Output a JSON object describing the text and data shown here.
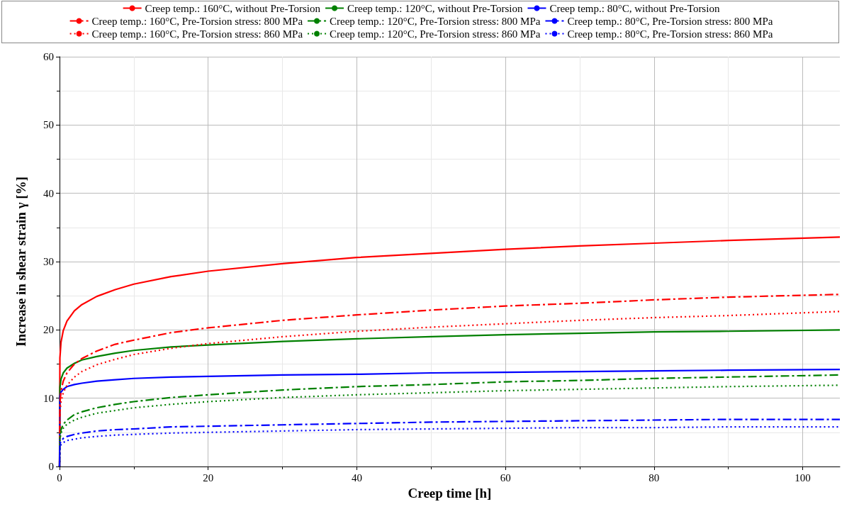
{
  "chart_data": {
    "type": "line",
    "xlabel": "Creep time [h]",
    "ylabel": "Increase in shear strain γ [%]",
    "x": [
      0,
      0.05,
      0.2,
      0.5,
      1,
      2,
      3,
      5,
      7.5,
      10,
      15,
      20,
      30,
      40,
      50,
      60,
      70,
      80,
      90,
      105
    ],
    "xlim": [
      0,
      105
    ],
    "xticks": [
      0,
      20,
      40,
      60,
      80,
      100
    ],
    "ylim": [
      0,
      60
    ],
    "yticks": [
      0,
      10,
      20,
      30,
      40,
      50,
      60
    ],
    "grid": true,
    "legend": "top",
    "marker": "none",
    "series": [
      {
        "name": "Creep temp.: 160°C, without Pre-Torsion",
        "color": "#ff0000",
        "line_style": "solid",
        "values": [
          0,
          15.9,
          18.2,
          19.9,
          21.3,
          22.8,
          23.7,
          24.9,
          25.9,
          26.7,
          27.8,
          28.6,
          29.7,
          30.6,
          31.2,
          31.8,
          32.3,
          32.7,
          33.1,
          33.6
        ]
      },
      {
        "name": "Creep temp.: 120°C, without Pre-Torsion",
        "color": "#008000",
        "line_style": "solid",
        "values": [
          0,
          11.6,
          12.8,
          13.7,
          14.4,
          15.1,
          15.6,
          16.1,
          16.6,
          17.0,
          17.5,
          17.8,
          18.3,
          18.7,
          19.0,
          19.3,
          19.5,
          19.7,
          19.8,
          20.0
        ]
      },
      {
        "name": "Creep temp.: 80°C, without Pre-Torsion",
        "color": "#0000ff",
        "line_style": "solid",
        "values": [
          0,
          10.3,
          10.9,
          11.3,
          11.7,
          12.0,
          12.2,
          12.5,
          12.7,
          12.9,
          13.1,
          13.2,
          13.4,
          13.5,
          13.7,
          13.8,
          13.9,
          14.0,
          14.1,
          14.2
        ]
      },
      {
        "name": "Creep temp.: 160°C, Pre-Torsion stress: 800 MPa",
        "color": "#ff0000",
        "line_style": "dashdot",
        "values": [
          0,
          9.2,
          11.1,
          12.5,
          13.7,
          15.0,
          15.8,
          16.9,
          17.9,
          18.5,
          19.6,
          20.3,
          21.4,
          22.2,
          22.9,
          23.5,
          23.9,
          24.4,
          24.8,
          25.2
        ]
      },
      {
        "name": "Creep temp.: 120°C, Pre-Torsion stress: 800 MPa",
        "color": "#008000",
        "line_style": "dashdot",
        "values": [
          0,
          4.4,
          5.4,
          6.2,
          6.8,
          7.6,
          8.0,
          8.6,
          9.1,
          9.5,
          10.1,
          10.5,
          11.2,
          11.7,
          12.0,
          12.4,
          12.6,
          12.9,
          13.1,
          13.4
        ]
      },
      {
        "name": "Creep temp.: 80°C, Pre-Torsion stress: 800 MPa",
        "color": "#0000ff",
        "line_style": "dashdot",
        "values": [
          0,
          3.3,
          3.7,
          4.1,
          4.4,
          4.7,
          4.9,
          5.2,
          5.4,
          5.5,
          5.8,
          5.9,
          6.1,
          6.3,
          6.5,
          6.6,
          6.7,
          6.8,
          6.9,
          6.9
        ]
      },
      {
        "name": "Creep temp.: 160°C, Pre-Torsion stress: 860 MPa",
        "color": "#ff0000",
        "line_style": "dotted",
        "values": [
          0,
          7.9,
          9.5,
          10.8,
          11.9,
          13.1,
          13.9,
          14.9,
          15.7,
          16.4,
          17.3,
          18.0,
          19.0,
          19.8,
          20.4,
          20.9,
          21.4,
          21.8,
          22.1,
          22.7
        ]
      },
      {
        "name": "Creep temp.: 120°C, Pre-Torsion stress: 860 MPa",
        "color": "#008000",
        "line_style": "dotted",
        "values": [
          0,
          4.0,
          4.9,
          5.6,
          6.2,
          6.8,
          7.2,
          7.8,
          8.2,
          8.6,
          9.1,
          9.5,
          10.1,
          10.5,
          10.8,
          11.1,
          11.3,
          11.5,
          11.7,
          11.9
        ]
      },
      {
        "name": "Creep temp.: 80°C, Pre-Torsion stress: 860 MPa",
        "color": "#0000ff",
        "line_style": "dotted",
        "values": [
          0,
          2.8,
          3.2,
          3.5,
          3.8,
          4.0,
          4.2,
          4.4,
          4.6,
          4.7,
          4.9,
          5.0,
          5.2,
          5.4,
          5.5,
          5.6,
          5.7,
          5.7,
          5.8,
          5.8
        ]
      }
    ]
  }
}
